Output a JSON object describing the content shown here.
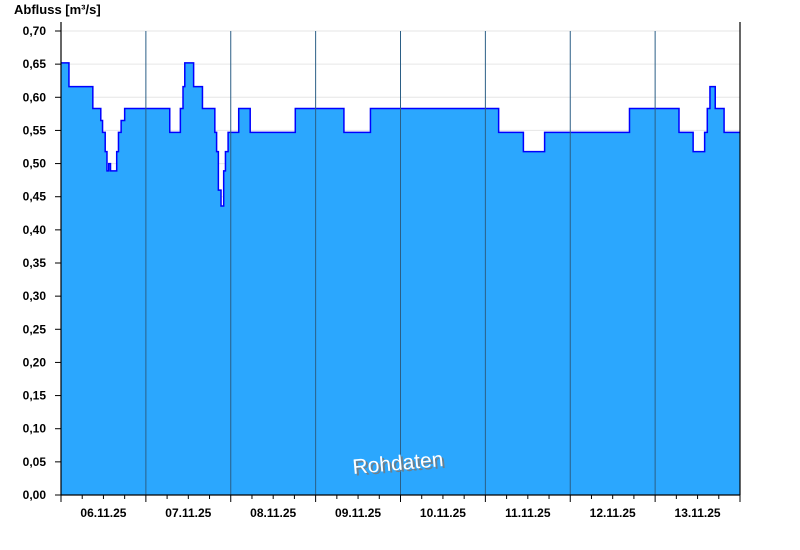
{
  "chart_data": {
    "type": "area",
    "title": "",
    "ylabel": "Abfluss [m³/s]",
    "xlabel": "",
    "watermark": "Rohdaten",
    "ylim": [
      0,
      0.7
    ],
    "xlim": [
      "2025-11-06T00:00",
      "2025-11-14T00:00"
    ],
    "yticks": [
      "0,00",
      "0,05",
      "0,10",
      "0,15",
      "0,20",
      "0,25",
      "0,30",
      "0,35",
      "0,40",
      "0,45",
      "0,50",
      "0,55",
      "0,60",
      "0,65",
      "0,70"
    ],
    "xticks": [
      "06.11.25",
      "07.11.25",
      "08.11.25",
      "09.11.25",
      "10.11.25",
      "11.11.25",
      "12.11.25",
      "13.11.25"
    ],
    "grid": "horizontal",
    "step": true,
    "colors": {
      "fill": "#2ba7fe",
      "line": "#0000ff",
      "day_lines": "#2b5f86",
      "grid": "#e6e6e6"
    },
    "points": [
      [
        "2025-11-06T00:00",
        0.652
      ],
      [
        "2025-11-06T02:15",
        0.616
      ],
      [
        "2025-11-06T09:00",
        0.583
      ],
      [
        "2025-11-06T11:15",
        0.565
      ],
      [
        "2025-11-06T11:45",
        0.547
      ],
      [
        "2025-11-06T12:30",
        0.518
      ],
      [
        "2025-11-06T13:00",
        0.489
      ],
      [
        "2025-11-06T13:30",
        0.5
      ],
      [
        "2025-11-06T14:00",
        0.489
      ],
      [
        "2025-11-06T15:45",
        0.518
      ],
      [
        "2025-11-06T16:15",
        0.547
      ],
      [
        "2025-11-06T17:00",
        0.565
      ],
      [
        "2025-11-06T18:00",
        0.583
      ],
      [
        "2025-11-07T06:45",
        0.547
      ],
      [
        "2025-11-07T09:45",
        0.583
      ],
      [
        "2025-11-07T10:30",
        0.616
      ],
      [
        "2025-11-07T11:00",
        0.652
      ],
      [
        "2025-11-07T13:30",
        0.616
      ],
      [
        "2025-11-07T16:00",
        0.583
      ],
      [
        "2025-11-07T19:30",
        0.547
      ],
      [
        "2025-11-07T20:00",
        0.518
      ],
      [
        "2025-11-07T20:30",
        0.46
      ],
      [
        "2025-11-07T21:15",
        0.436
      ],
      [
        "2025-11-07T22:00",
        0.489
      ],
      [
        "2025-11-07T22:30",
        0.518
      ],
      [
        "2025-11-07T23:15",
        0.547
      ],
      [
        "2025-11-08T02:15",
        0.583
      ],
      [
        "2025-11-08T05:30",
        0.547
      ],
      [
        "2025-11-08T18:15",
        0.583
      ],
      [
        "2025-11-09T08:00",
        0.547
      ],
      [
        "2025-11-09T15:30",
        0.583
      ],
      [
        "2025-11-11T03:45",
        0.547
      ],
      [
        "2025-11-11T10:45",
        0.518
      ],
      [
        "2025-11-11T16:45",
        0.547
      ],
      [
        "2025-11-12T16:45",
        0.583
      ],
      [
        "2025-11-13T06:45",
        0.547
      ],
      [
        "2025-11-13T10:45",
        0.518
      ],
      [
        "2025-11-13T14:00",
        0.547
      ],
      [
        "2025-11-13T14:45",
        0.583
      ],
      [
        "2025-11-13T15:30",
        0.616
      ],
      [
        "2025-11-13T17:00",
        0.583
      ],
      [
        "2025-11-13T19:30",
        0.547
      ],
      [
        "2025-11-14T00:00",
        0.547
      ]
    ]
  }
}
